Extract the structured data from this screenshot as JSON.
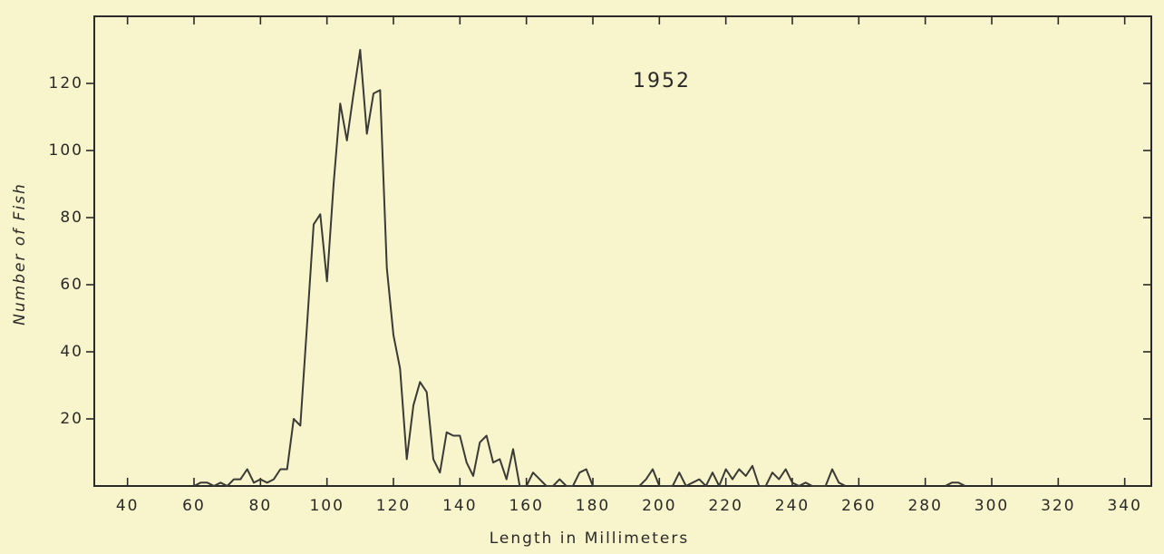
{
  "chart_data": {
    "type": "line",
    "title": "1952",
    "x_label": "Length  in  Millimeters",
    "y_label": "Number  of  Fish",
    "x": [
      60,
      62,
      64,
      66,
      68,
      70,
      72,
      74,
      76,
      78,
      80,
      82,
      84,
      86,
      88,
      90,
      92,
      94,
      96,
      98,
      100,
      102,
      104,
      106,
      108,
      110,
      112,
      114,
      116,
      118,
      120,
      122,
      124,
      126,
      128,
      130,
      132,
      134,
      136,
      138,
      140,
      142,
      144,
      146,
      148,
      150,
      152,
      154,
      156,
      158,
      160,
      162,
      164,
      166,
      168,
      170,
      172,
      174,
      176,
      178,
      180,
      182,
      184,
      186,
      188,
      190,
      192,
      194,
      196,
      198,
      200,
      202,
      204,
      206,
      208,
      210,
      212,
      214,
      216,
      218,
      220,
      222,
      224,
      226,
      228,
      230,
      232,
      234,
      236,
      238,
      240,
      242,
      244,
      246,
      248,
      250,
      252,
      254,
      256,
      null,
      286,
      288,
      290,
      292
    ],
    "values": [
      0,
      1,
      1,
      0,
      1,
      0,
      2,
      2,
      5,
      1,
      2,
      1,
      2,
      5,
      5,
      20,
      18,
      48,
      78,
      81,
      61,
      90,
      114,
      103,
      117,
      130,
      105,
      117,
      118,
      65,
      45,
      35,
      8,
      24,
      31,
      28,
      8,
      4,
      16,
      15,
      15,
      7,
      3,
      13,
      15,
      7,
      8,
      2,
      11,
      0,
      0,
      4,
      2,
      0,
      0,
      2,
      0,
      0,
      4,
      5,
      0,
      0,
      0,
      0,
      0,
      0,
      0,
      0,
      2,
      5,
      0,
      0,
      0,
      4,
      0,
      1,
      2,
      0,
      4,
      0,
      5,
      2,
      5,
      3,
      6,
      0,
      0,
      4,
      2,
      5,
      1,
      0,
      1,
      0,
      0,
      0,
      5,
      1,
      0,
      null,
      0,
      1,
      1,
      0
    ],
    "color": "#3a3a36",
    "xlim": [
      30,
      348
    ],
    "xticks": [
      40,
      60,
      80,
      100,
      120,
      140,
      160,
      180,
      200,
      220,
      240,
      260,
      280,
      300,
      320,
      340
    ],
    "ylim": [
      0,
      140
    ],
    "yticks": [
      20,
      40,
      60,
      80,
      100,
      120
    ],
    "grid": false
  }
}
